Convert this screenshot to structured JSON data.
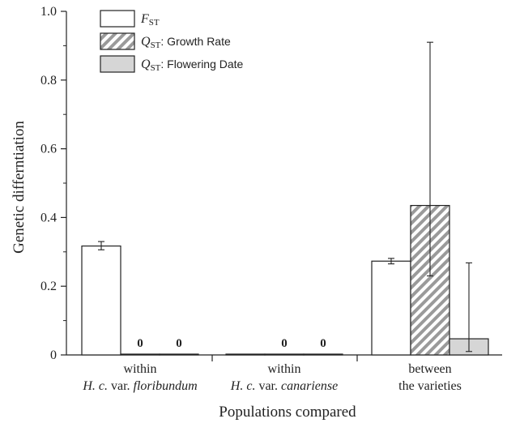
{
  "chart_data": {
    "type": "bar",
    "title": "",
    "xlabel": "Populations compared",
    "ylabel": "Genetic differntiation",
    "ylim": [
      0,
      1.0
    ],
    "yticks": [
      "0",
      "0.2",
      "0.4",
      "0.6",
      "0.8",
      "1.0"
    ],
    "grid": false,
    "legend_position": "top-left",
    "categories": [
      {
        "line1": "within",
        "line2_prefix": "H. c.",
        "line2_mid": " var. ",
        "line2_italic": "floribundum",
        "line2_plain": ""
      },
      {
        "line1": "within",
        "line2_prefix": "H. c.",
        "line2_mid": " var. ",
        "line2_italic": "canariense",
        "line2_plain": ""
      },
      {
        "line1": "between",
        "line2_prefix": "",
        "line2_mid": "",
        "line2_italic": "",
        "line2_plain": "the varieties"
      }
    ],
    "series": [
      {
        "name": "F_ST",
        "legend_symbol": "F",
        "legend_sub": "ST",
        "legend_text": "",
        "fill": "white",
        "values": [
          0.317,
          0,
          0.273
        ],
        "err_low": [
          0.306,
          null,
          0.265
        ],
        "err_high": [
          0.33,
          null,
          0.281
        ],
        "zero_labels": [
          null,
          null,
          null
        ]
      },
      {
        "name": "Q_ST: Growth Rate",
        "legend_symbol": "Q",
        "legend_sub": "ST",
        "legend_text": ": Growth Rate",
        "fill": "hatch",
        "values": [
          0,
          0,
          0.435
        ],
        "err_low": [
          null,
          null,
          0.23
        ],
        "err_high": [
          null,
          null,
          0.91
        ],
        "zero_labels": [
          "0",
          "0",
          null
        ]
      },
      {
        "name": "Q_ST: Flowering Date",
        "legend_symbol": "Q",
        "legend_sub": "ST",
        "legend_text": ": Flowering Date",
        "fill": "gray",
        "values": [
          0,
          0,
          0.047
        ],
        "err_low": [
          null,
          null,
          0.01
        ],
        "err_high": [
          null,
          null,
          0.268
        ],
        "zero_labels": [
          "0",
          "0",
          null
        ]
      }
    ]
  },
  "colors": {
    "axis": "#222222",
    "bar_stroke": "#222222",
    "gray_fill": "#d6d6d6",
    "hatch_stripe": "#9a9a9a"
  }
}
